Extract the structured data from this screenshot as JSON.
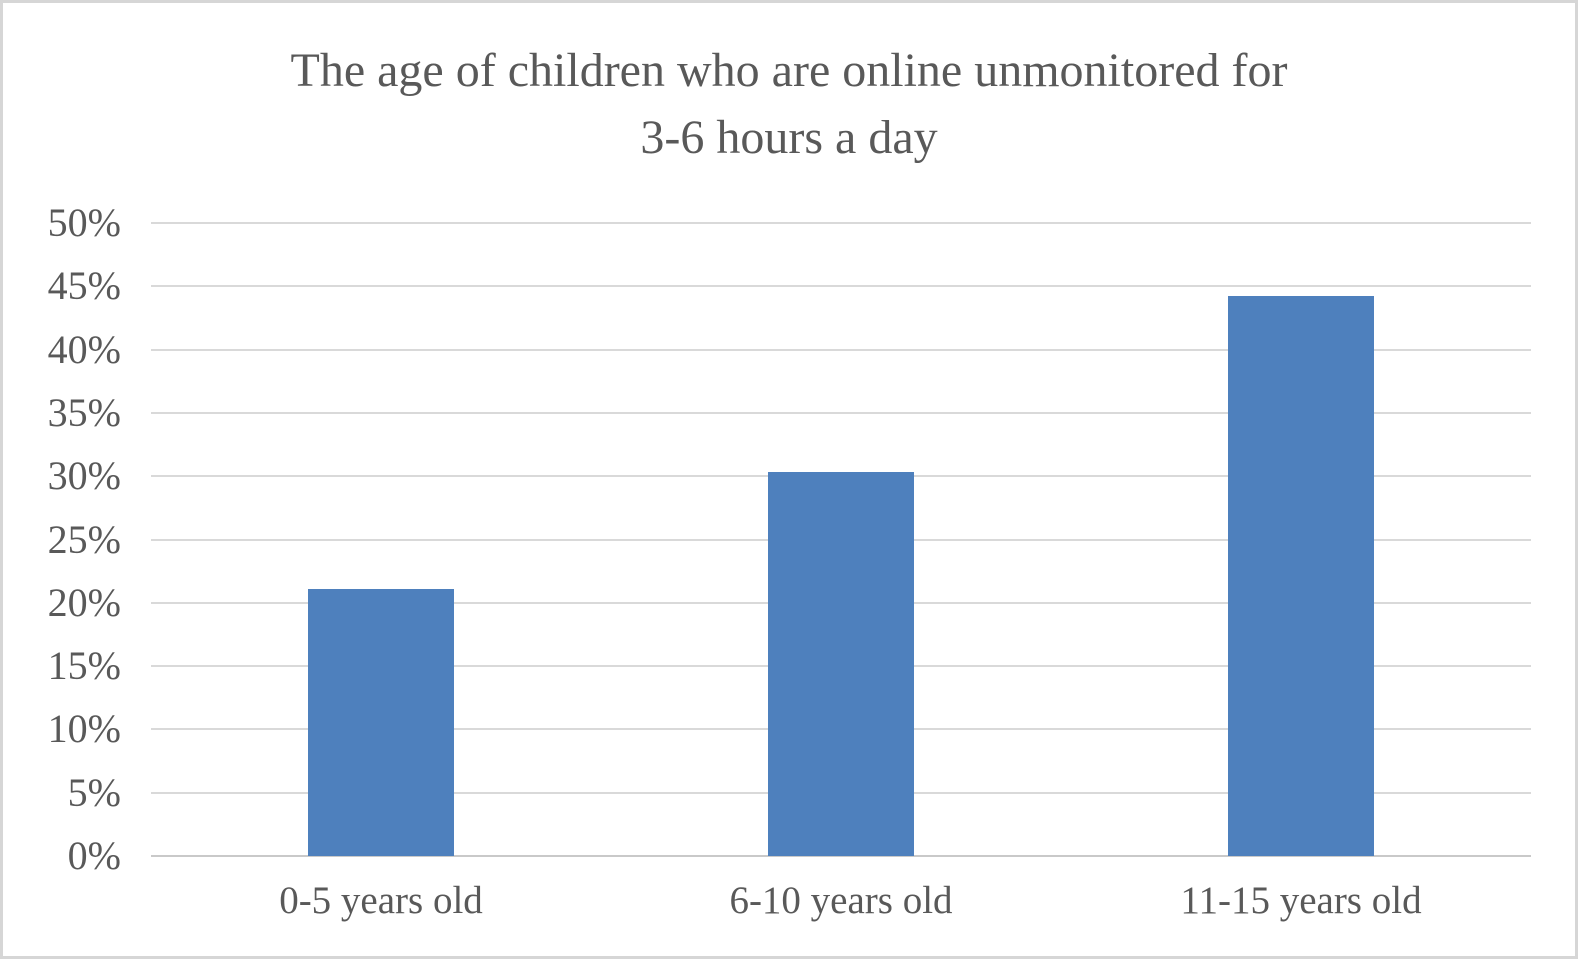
{
  "chart_data": {
    "type": "bar",
    "title": "The age of children who are online unmonitored for 3-6 hours a day",
    "title_lines": [
      "The age of children who are online unmonitored for",
      "3-6 hours a day"
    ],
    "categories": [
      "0-5 years old",
      "6-10 years old",
      "11-15 years old"
    ],
    "values": [
      21.1,
      30.3,
      44.2
    ],
    "value_unit": "%",
    "xlabel": "",
    "ylabel": "",
    "ylim": [
      0,
      50
    ],
    "ytick_step": 5,
    "ytick_labels": [
      "0%",
      "5%",
      "10%",
      "15%",
      "20%",
      "25%",
      "30%",
      "35%",
      "40%",
      "45%",
      "50%"
    ],
    "grid": true,
    "legend": "none",
    "colors": {
      "bar": "#4e80bd",
      "text": "#595959",
      "gridline": "#d9d9d9",
      "axis_line": "#c9c9c9",
      "background": "#ffffff",
      "frame_border": "#d6d6d6"
    }
  }
}
